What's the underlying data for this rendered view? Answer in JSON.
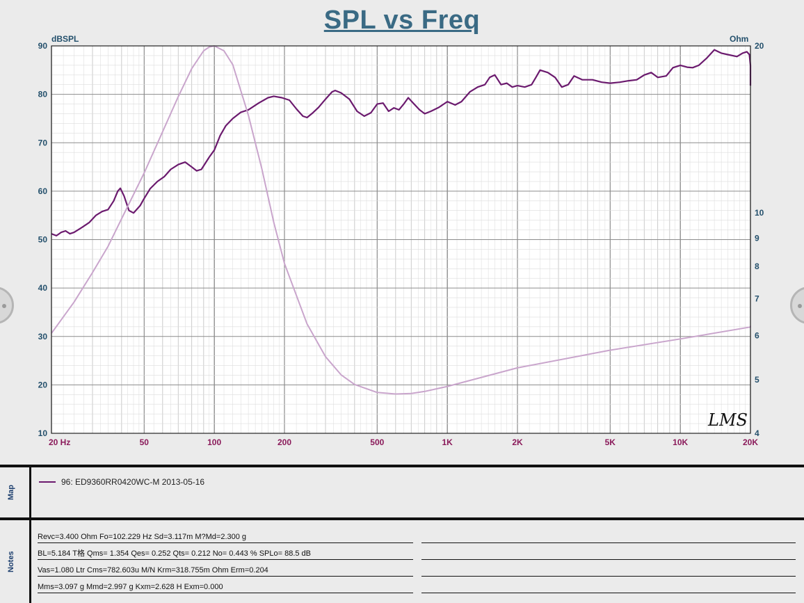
{
  "title": "SPL vs Freq",
  "chart_data": {
    "type": "line",
    "title": "SPL vs Freq",
    "x_scale": "log",
    "xlim": [
      20,
      20000
    ],
    "x_ticks": [
      {
        "v": 20,
        "label": "20  Hz"
      },
      {
        "v": 50,
        "label": "50"
      },
      {
        "v": 100,
        "label": "100"
      },
      {
        "v": 200,
        "label": "200"
      },
      {
        "v": 500,
        "label": "500"
      },
      {
        "v": 1000,
        "label": "1K"
      },
      {
        "v": 2000,
        "label": "2K"
      },
      {
        "v": 5000,
        "label": "5K"
      },
      {
        "v": 10000,
        "label": "10K"
      },
      {
        "v": 20000,
        "label": "20K"
      }
    ],
    "y_left": {
      "label": "dBSPL",
      "lim": [
        10,
        90
      ],
      "ticks": [
        "10",
        "20",
        "30",
        "40",
        "50",
        "60",
        "70",
        "80",
        "90"
      ]
    },
    "y_right": {
      "label": "Ohm",
      "scale": "log",
      "lim": [
        4,
        20
      ],
      "ticks": [
        "4",
        "5",
        "6",
        "7",
        "8",
        "9",
        "10",
        "20"
      ]
    },
    "grid": true,
    "series": [
      {
        "name": "96: ED9360RR0420WC-M 2013-05-16",
        "axis": "left",
        "color": "#6b1a6e",
        "points": [
          [
            20,
            51.2
          ],
          [
            21,
            50.8
          ],
          [
            22,
            51.5
          ],
          [
            23,
            51.8
          ],
          [
            24,
            51.2
          ],
          [
            25,
            51.5
          ],
          [
            27,
            52.5
          ],
          [
            29,
            53.5
          ],
          [
            31,
            55
          ],
          [
            33,
            55.8
          ],
          [
            35,
            56.2
          ],
          [
            37,
            58
          ],
          [
            38.5,
            60
          ],
          [
            39.5,
            60.6
          ],
          [
            41,
            59
          ],
          [
            43,
            56
          ],
          [
            45,
            55.5
          ],
          [
            48,
            57
          ],
          [
            50,
            58.5
          ],
          [
            53,
            60.5
          ],
          [
            57,
            62
          ],
          [
            61,
            63
          ],
          [
            65,
            64.5
          ],
          [
            70,
            65.5
          ],
          [
            75,
            66
          ],
          [
            80,
            65
          ],
          [
            84,
            64.2
          ],
          [
            88,
            64.5
          ],
          [
            95,
            67
          ],
          [
            100,
            68.5
          ],
          [
            106,
            71.5
          ],
          [
            112,
            73.5
          ],
          [
            120,
            75
          ],
          [
            130,
            76.3
          ],
          [
            140,
            76.8
          ],
          [
            155,
            78.2
          ],
          [
            170,
            79.3
          ],
          [
            180,
            79.6
          ],
          [
            195,
            79.3
          ],
          [
            210,
            78.8
          ],
          [
            225,
            77
          ],
          [
            240,
            75.5
          ],
          [
            250,
            75.2
          ],
          [
            265,
            76.2
          ],
          [
            280,
            77.3
          ],
          [
            300,
            79
          ],
          [
            320,
            80.5
          ],
          [
            330,
            80.8
          ],
          [
            350,
            80.3
          ],
          [
            380,
            79
          ],
          [
            410,
            76.5
          ],
          [
            440,
            75.5
          ],
          [
            470,
            76.2
          ],
          [
            500,
            78
          ],
          [
            530,
            78.2
          ],
          [
            560,
            76.5
          ],
          [
            590,
            77.2
          ],
          [
            620,
            76.8
          ],
          [
            650,
            78
          ],
          [
            680,
            79.3
          ],
          [
            720,
            78
          ],
          [
            760,
            76.8
          ],
          [
            800,
            76
          ],
          [
            850,
            76.5
          ],
          [
            920,
            77.3
          ],
          [
            1000,
            78.5
          ],
          [
            1080,
            77.8
          ],
          [
            1150,
            78.5
          ],
          [
            1250,
            80.5
          ],
          [
            1350,
            81.5
          ],
          [
            1450,
            82
          ],
          [
            1520,
            83.5
          ],
          [
            1600,
            84
          ],
          [
            1700,
            82
          ],
          [
            1800,
            82.3
          ],
          [
            1900,
            81.5
          ],
          [
            2000,
            81.8
          ],
          [
            2150,
            81.5
          ],
          [
            2300,
            82
          ],
          [
            2400,
            83.5
          ],
          [
            2500,
            85
          ],
          [
            2700,
            84.5
          ],
          [
            2900,
            83.5
          ],
          [
            3100,
            81.5
          ],
          [
            3300,
            82
          ],
          [
            3500,
            83.8
          ],
          [
            3800,
            83
          ],
          [
            4200,
            83
          ],
          [
            4600,
            82.5
          ],
          [
            5000,
            82.3
          ],
          [
            5500,
            82.5
          ],
          [
            6000,
            82.8
          ],
          [
            6500,
            83
          ],
          [
            7000,
            84
          ],
          [
            7500,
            84.5
          ],
          [
            8000,
            83.5
          ],
          [
            8700,
            83.8
          ],
          [
            9300,
            85.5
          ],
          [
            10000,
            86
          ],
          [
            10700,
            85.6
          ],
          [
            11300,
            85.5
          ],
          [
            12000,
            86
          ],
          [
            13000,
            87.5
          ],
          [
            14000,
            89.2
          ],
          [
            15000,
            88.5
          ],
          [
            16000,
            88.2
          ],
          [
            17500,
            87.8
          ],
          [
            18500,
            88.5
          ],
          [
            19300,
            88.8
          ],
          [
            19800,
            88.2
          ],
          [
            20500,
            86
          ],
          [
            21500,
            82.5
          ],
          [
            22000,
            81.8
          ]
        ]
      },
      {
        "name": "",
        "axis": "right",
        "color": "#c9a5cc",
        "points": [
          [
            20,
            6.06
          ],
          [
            25,
            6.9
          ],
          [
            30,
            7.8
          ],
          [
            35,
            8.7
          ],
          [
            40,
            9.75
          ],
          [
            50,
            11.8
          ],
          [
            60,
            14
          ],
          [
            70,
            16.2
          ],
          [
            80,
            18.2
          ],
          [
            90,
            19.6
          ],
          [
            95,
            19.9
          ],
          [
            100,
            20.1
          ],
          [
            110,
            19.6
          ],
          [
            120,
            18.5
          ],
          [
            140,
            15
          ],
          [
            160,
            12
          ],
          [
            180,
            9.6
          ],
          [
            200,
            8.1
          ],
          [
            250,
            6.3
          ],
          [
            300,
            5.5
          ],
          [
            350,
            5.1
          ],
          [
            400,
            4.9
          ],
          [
            500,
            4.74
          ],
          [
            600,
            4.71
          ],
          [
            700,
            4.72
          ],
          [
            800,
            4.76
          ],
          [
            1000,
            4.86
          ],
          [
            2000,
            5.25
          ],
          [
            5000,
            5.65
          ],
          [
            10000,
            5.92
          ],
          [
            20000,
            6.22
          ],
          [
            22000,
            6.25
          ]
        ]
      }
    ],
    "annotation": "LMS"
  },
  "map_panel": {
    "label": "Map",
    "legend_entry": "96: ED9360RR0420WC-M 2013-05-16"
  },
  "notes_panel": {
    "label": "Notes",
    "lines": [
      "Revc=3.400 Ohm  Fo=102.229 Hz  Sd=3.117m M?Md=2.300 g",
      "BL=5.184 T格  Qms= 1.354  Qes= 0.252  Qts= 0.212  No= 0.443 %  SPLo= 88.5 dB",
      "Vas=1.080 Ltr  Cms=782.603u M/N  Krm=318.755m Ohm  Erm=0.204",
      "Mms=3.097 g  Mmd=2.997 g  Kxm=2.628 H  Exm=0.000"
    ]
  }
}
